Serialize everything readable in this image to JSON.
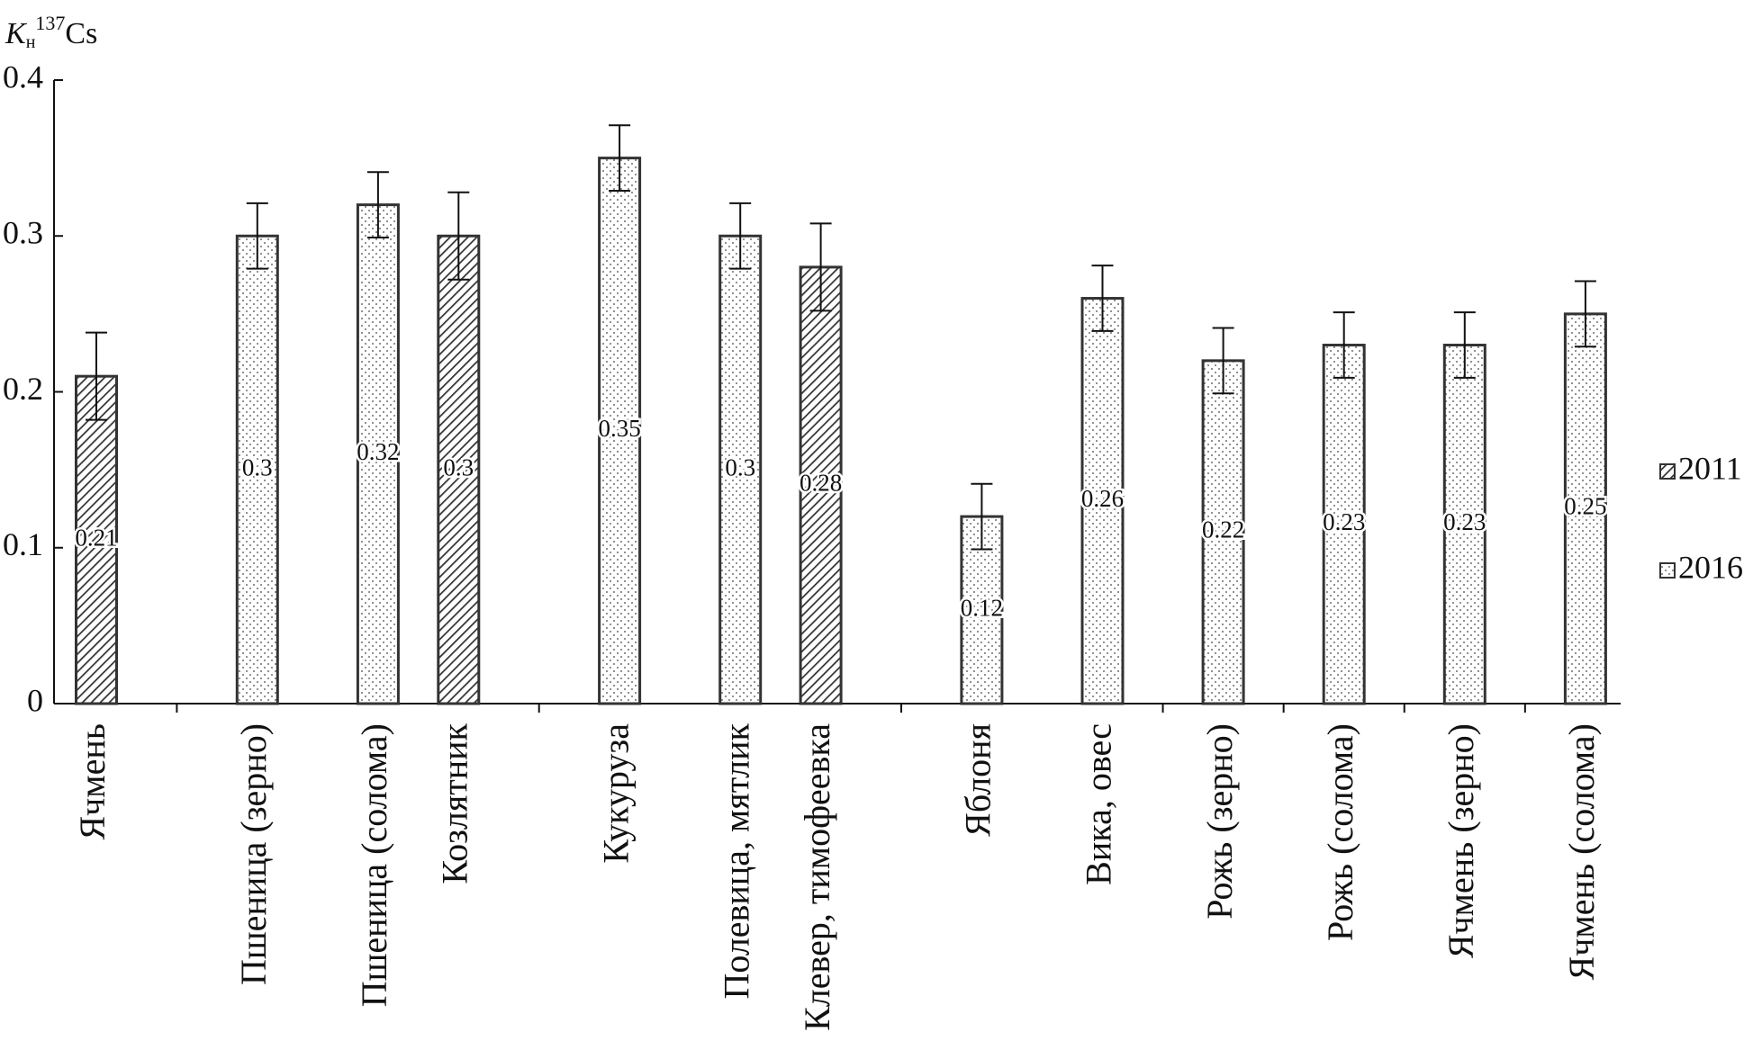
{
  "chart_data": {
    "type": "bar",
    "ylabel": {
      "symbol": "K",
      "subscript": "н",
      "isotope": "137",
      "element": "Cs"
    },
    "categories": [
      "Ячмень",
      "Пшеница (зерно)",
      "Пшеница (солома)",
      "Козлятник",
      "Кукуруза",
      "Полевица, мятлик",
      "Клевер, тимофеевка",
      "Яблоня",
      "Вика, овес",
      "Рожь (зерно)",
      "Рожь (солома)",
      "Ячмень (зерно)",
      "Ячмень (солома)"
    ],
    "series": [
      {
        "name": "2011",
        "color": "#333333",
        "pattern": "hatch",
        "values": [
          0.21,
          null,
          null,
          0.3,
          null,
          null,
          0.28,
          null,
          null,
          null,
          null,
          null,
          null
        ],
        "errors": [
          0.028,
          null,
          null,
          0.028,
          null,
          null,
          0.028,
          null,
          null,
          null,
          null,
          null,
          null
        ]
      },
      {
        "name": "2016",
        "color": "#333333",
        "pattern": "dots",
        "values": [
          null,
          0.3,
          0.32,
          null,
          0.35,
          0.3,
          null,
          0.12,
          0.26,
          0.22,
          0.23,
          0.23,
          0.25
        ],
        "errors": [
          null,
          0.021,
          0.021,
          null,
          0.021,
          0.021,
          null,
          0.021,
          0.021,
          0.021,
          0.021,
          0.021,
          0.021
        ]
      }
    ],
    "ylim": [
      0,
      0.4
    ],
    "yticks": [
      0,
      0.1,
      0.2,
      0.3,
      0.4
    ],
    "grid": false,
    "legend": "right"
  }
}
